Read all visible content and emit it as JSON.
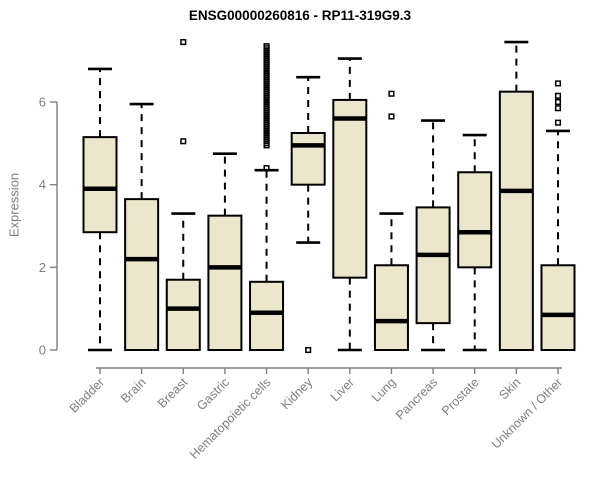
{
  "title": "ENSG00000260816 - RP11-319G9.3",
  "colors": {
    "background": "#ffffff",
    "box_fill": "#ece7cc",
    "box_stroke": "#000000",
    "median": "#000000",
    "whisker": "#000000",
    "outlier": "#000000",
    "axis": "#7f7f7f",
    "tick_label": "#7f7f7f",
    "title_color": "#000000"
  },
  "chart_data": {
    "type": "boxplot",
    "title": "ENSG00000260816 - RP11-319G9.3",
    "xlabel": "",
    "ylabel": "Expression",
    "ylim": [
      0,
      7.6
    ],
    "yticks": [
      0,
      2,
      4,
      6
    ],
    "grid": false,
    "legend": false,
    "categories": [
      "Bladder",
      "Brain",
      "Breast",
      "Gastric",
      "Hematopoietic cells",
      "Kidney",
      "Liver",
      "Lung",
      "Pancreas",
      "Prostate",
      "Skin",
      "Unknown / Other"
    ],
    "boxes": [
      {
        "category": "Bladder",
        "whisker_low": 0,
        "q1": 2.85,
        "median": 3.9,
        "q3": 5.15,
        "whisker_high": 6.8,
        "outliers": []
      },
      {
        "category": "Brain",
        "whisker_low": 0,
        "q1": 0,
        "median": 2.2,
        "q3": 3.65,
        "whisker_high": 5.95,
        "outliers": []
      },
      {
        "category": "Breast",
        "whisker_low": 0,
        "q1": 0,
        "median": 1.0,
        "q3": 1.7,
        "whisker_high": 3.3,
        "outliers": [
          5.05,
          7.45
        ]
      },
      {
        "category": "Gastric",
        "whisker_low": 0,
        "q1": 0,
        "median": 2.0,
        "q3": 3.25,
        "whisker_high": 4.75,
        "outliers": []
      },
      {
        "category": "Hematopoietic cells",
        "whisker_low": 0,
        "q1": 0,
        "median": 0.9,
        "q3": 1.65,
        "whisker_high": 4.35,
        "outliers": [
          4.4,
          4.95,
          5.0,
          5.05,
          5.1,
          5.15,
          5.2,
          5.25,
          5.3,
          5.35,
          5.4,
          5.45,
          5.5,
          5.55,
          5.6,
          5.65,
          5.7,
          5.75,
          5.8,
          5.85,
          5.9,
          5.95,
          6.0,
          6.05,
          6.1,
          6.15,
          6.2,
          6.25,
          6.3,
          6.35,
          6.4,
          6.45,
          6.5,
          6.55,
          6.6,
          6.65,
          6.7,
          6.75,
          6.8,
          6.85,
          6.9,
          6.95,
          7.0,
          7.05,
          7.1,
          7.15,
          7.2,
          7.25,
          7.3,
          7.35
        ]
      },
      {
        "category": "Kidney",
        "whisker_low": 2.6,
        "q1": 4.0,
        "median": 4.95,
        "q3": 5.25,
        "whisker_high": 6.6,
        "outliers": [
          0.0
        ]
      },
      {
        "category": "Liver",
        "whisker_low": 0,
        "q1": 1.75,
        "median": 5.6,
        "q3": 6.05,
        "whisker_high": 7.05,
        "outliers": []
      },
      {
        "category": "Lung",
        "whisker_low": 0,
        "q1": 0,
        "median": 0.7,
        "q3": 2.05,
        "whisker_high": 3.3,
        "outliers": [
          5.65,
          6.2
        ]
      },
      {
        "category": "Pancreas",
        "whisker_low": 0,
        "q1": 0.65,
        "median": 2.3,
        "q3": 3.45,
        "whisker_high": 5.55,
        "outliers": []
      },
      {
        "category": "Prostate",
        "whisker_low": 0,
        "q1": 2.0,
        "median": 2.85,
        "q3": 4.3,
        "whisker_high": 5.2,
        "outliers": []
      },
      {
        "category": "Skin",
        "whisker_low": 0,
        "q1": 0,
        "median": 3.85,
        "q3": 6.25,
        "whisker_high": 7.45,
        "outliers": []
      },
      {
        "category": "Unknown / Other",
        "whisker_low": 0,
        "q1": 0,
        "median": 0.85,
        "q3": 2.05,
        "whisker_high": 5.3,
        "outliers": [
          5.5,
          5.85,
          6.0,
          6.15,
          6.45
        ]
      }
    ]
  }
}
